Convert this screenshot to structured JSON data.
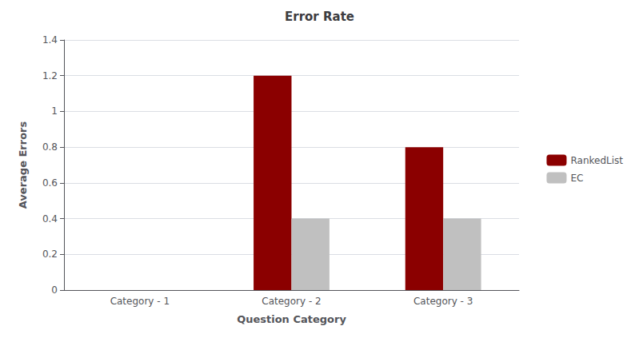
{
  "chart_data": {
    "type": "bar",
    "title": "Error Rate",
    "xlabel": "Question Category",
    "ylabel": "Average Errors",
    "categories": [
      "Category - 1",
      "Category - 2",
      "Category - 3"
    ],
    "series": [
      {
        "name": "RankedList",
        "color": "#8B0000",
        "values": [
          0.0,
          1.2,
          0.8
        ]
      },
      {
        "name": "EC",
        "color": "#C0C0C0",
        "values": [
          0.0,
          0.4,
          0.4
        ]
      }
    ],
    "ylim": [
      0,
      1.4
    ],
    "yticks": [
      0,
      0.2,
      0.4,
      0.6,
      0.8,
      1,
      1.2,
      1.4
    ],
    "grid": true,
    "legend": "right"
  }
}
